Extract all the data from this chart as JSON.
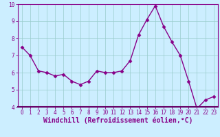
{
  "x": [
    0,
    1,
    2,
    3,
    4,
    5,
    6,
    7,
    8,
    9,
    10,
    11,
    12,
    13,
    14,
    15,
    16,
    17,
    18,
    19,
    20,
    21,
    22,
    23
  ],
  "y": [
    7.5,
    7.0,
    6.1,
    6.0,
    5.8,
    5.9,
    5.5,
    5.3,
    5.5,
    6.1,
    6.0,
    6.0,
    6.1,
    6.7,
    8.2,
    9.1,
    9.9,
    8.7,
    7.8,
    7.0,
    5.5,
    3.9,
    4.4,
    4.6
  ],
  "line_color": "#880088",
  "marker": "D",
  "marker_size": 2.5,
  "bg_color": "#cceeff",
  "grid_color": "#99cccc",
  "xlabel": "Windchill (Refroidissement éolien,°C)",
  "xlabel_color": "#880088",
  "ylim": [
    4,
    10
  ],
  "xlim": [
    -0.5,
    23.5
  ],
  "yticks": [
    4,
    5,
    6,
    7,
    8,
    9,
    10
  ],
  "xticks": [
    0,
    1,
    2,
    3,
    4,
    5,
    6,
    7,
    8,
    9,
    10,
    11,
    12,
    13,
    14,
    15,
    16,
    17,
    18,
    19,
    20,
    21,
    22,
    23
  ],
  "tick_color": "#880088",
  "tick_label_fontsize": 5.5,
  "xlabel_fontsize": 7.0,
  "spine_color": "#880088",
  "spine_bottom_color": "#660066",
  "linewidth": 1.0
}
